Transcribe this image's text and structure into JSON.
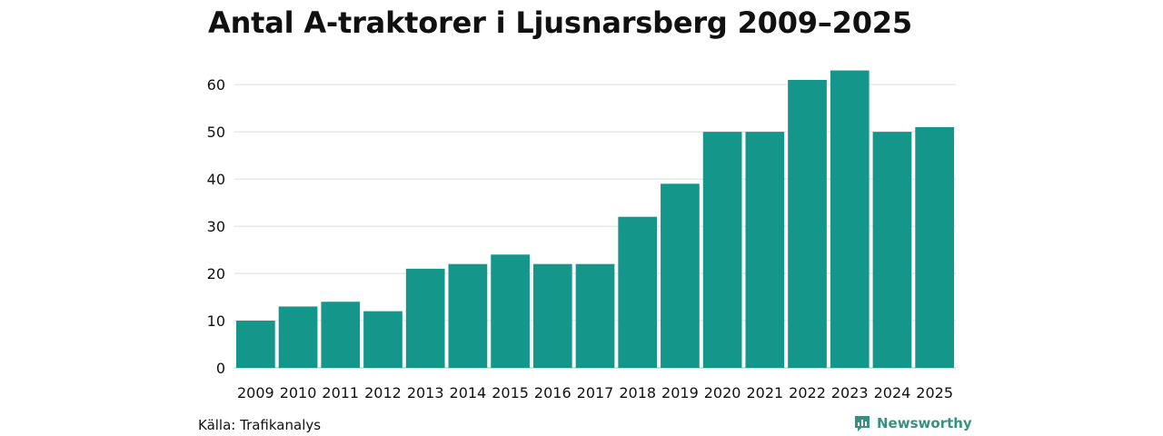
{
  "chart_data": {
    "type": "bar",
    "title": "Antal A-traktorer i Ljusnarsberg 2009–2025",
    "categories": [
      "2009",
      "2010",
      "2011",
      "2012",
      "2013",
      "2014",
      "2015",
      "2016",
      "2017",
      "2018",
      "2019",
      "2020",
      "2021",
      "2022",
      "2023",
      "2024",
      "2025"
    ],
    "values": [
      10,
      13,
      14,
      12,
      21,
      22,
      24,
      22,
      22,
      32,
      39,
      50,
      50,
      61,
      63,
      50,
      51
    ],
    "yticks": [
      "0",
      "10",
      "20",
      "30",
      "40",
      "50",
      "60"
    ],
    "ylim": [
      0,
      66
    ],
    "xlabel": "",
    "ylabel": "",
    "grid": true,
    "bar_color": "#14968a"
  },
  "footer": {
    "source": "Källa: Trafikanalys",
    "brand": "Newsworthy"
  },
  "colors": {
    "bar": "#14968a",
    "grid": "#dddddd",
    "brand": "#3a8f83"
  },
  "icons": {
    "brand": "newsworthy-logo-icon"
  }
}
